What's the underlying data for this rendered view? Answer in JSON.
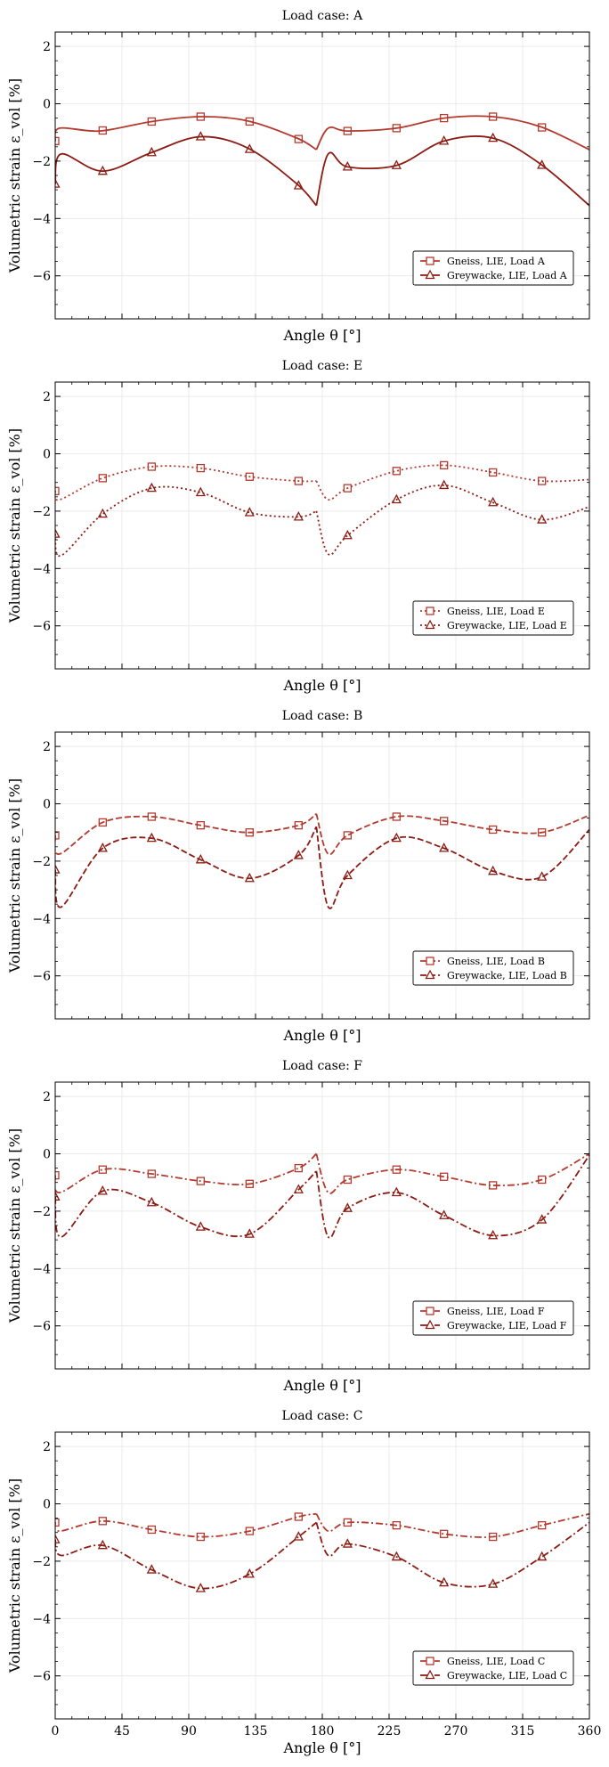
{
  "figure": {
    "x_ticks": [
      "0",
      "45",
      "90",
      "135",
      "180",
      "225",
      "270",
      "315",
      "360"
    ],
    "y_ticks": [
      "−6",
      "−4",
      "−2",
      "0",
      "2"
    ]
  },
  "colors": {
    "gneiss": "#b33a2e",
    "greywacke": "#8c1c13",
    "grid": "#e6e6e6"
  },
  "chart_data": [
    {
      "type": "line",
      "title": "Load case: A",
      "xlabel": "Angle θ [°]",
      "ylabel": "Volumetric strain ε_vol [%]",
      "xlim": [
        0,
        360
      ],
      "ylim": [
        -7.5,
        2.5
      ],
      "xticks": [
        0,
        45,
        90,
        135,
        180,
        225,
        270,
        315,
        360
      ],
      "yticks": [
        -6,
        -4,
        -2,
        0,
        2
      ],
      "grid": true,
      "legend_position": "lower-right",
      "series": [
        {
          "name": "Gneiss, LIE, Load A",
          "marker": "square",
          "linestyle": "solid",
          "x": [
            0,
            3,
            30,
            65,
            98,
            130,
            163,
            176,
            184,
            197,
            230,
            262,
            295,
            327,
            360
          ],
          "y": [
            -1.3,
            -0.85,
            -0.95,
            -0.62,
            -0.45,
            -0.6,
            -1.2,
            -1.6,
            -0.85,
            -0.95,
            -0.85,
            -0.5,
            -0.45,
            -0.8,
            -1.6
          ]
        },
        {
          "name": "Greywacke, LIE, Load A",
          "marker": "triangle",
          "linestyle": "solid",
          "x": [
            0,
            4,
            32,
            65,
            98,
            130,
            163,
            176,
            184,
            197,
            230,
            262,
            295,
            327,
            360
          ],
          "y": [
            -2.8,
            -1.75,
            -2.35,
            -1.7,
            -1.15,
            -1.55,
            -2.8,
            -3.55,
            -1.75,
            -2.2,
            -2.15,
            -1.3,
            -1.2,
            -2.1,
            -3.55
          ]
        }
      ],
      "markers": {
        "gneiss_x": [
          0,
          32,
          65,
          98,
          131,
          164,
          197,
          230,
          262,
          295,
          328
        ],
        "greywacke_x": [
          0,
          32,
          65,
          98,
          131,
          164,
          197,
          230,
          262,
          295,
          328
        ]
      }
    },
    {
      "type": "line",
      "title": "Load case: E",
      "xlabel": "Angle θ [°]",
      "ylabel": "Volumetric strain ε_vol [%]",
      "xlim": [
        0,
        360
      ],
      "ylim": [
        -7.5,
        2.5
      ],
      "xticks": [
        0,
        45,
        90,
        135,
        180,
        225,
        270,
        315,
        360
      ],
      "yticks": [
        -6,
        -4,
        -2,
        0,
        2
      ],
      "grid": true,
      "legend_position": "lower-right",
      "series": [
        {
          "name": "Gneiss, LIE, Load E",
          "marker": "square",
          "linestyle": "dotted",
          "x": [
            0,
            3,
            32,
            65,
            98,
            131,
            164,
            176,
            184,
            197,
            230,
            262,
            295,
            328,
            360
          ],
          "y": [
            -1.3,
            -1.6,
            -0.85,
            -0.45,
            -0.5,
            -0.8,
            -0.95,
            -0.95,
            -1.6,
            -1.2,
            -0.6,
            -0.4,
            -0.65,
            -0.95,
            -0.9
          ]
        },
        {
          "name": "Greywacke, LIE, Load E",
          "marker": "triangle",
          "linestyle": "dotted",
          "x": [
            0,
            4,
            32,
            65,
            98,
            131,
            164,
            176,
            184,
            197,
            230,
            262,
            295,
            328,
            360
          ],
          "y": [
            -2.8,
            -3.55,
            -2.1,
            -1.2,
            -1.35,
            -2.05,
            -2.2,
            -2.0,
            -3.5,
            -2.85,
            -1.6,
            -1.1,
            -1.7,
            -2.3,
            -1.85
          ]
        }
      ],
      "markers": {
        "gneiss_x": [
          0,
          32,
          65,
          98,
          131,
          164,
          197,
          230,
          262,
          295,
          328
        ],
        "greywacke_x": [
          0,
          32,
          65,
          98,
          131,
          164,
          197,
          230,
          262,
          295,
          328
        ]
      }
    },
    {
      "type": "line",
      "title": "Load case: B",
      "xlabel": "Angle θ [°]",
      "ylabel": "Volumetric strain ε_vol [%]",
      "xlim": [
        0,
        360
      ],
      "ylim": [
        -7.5,
        2.5
      ],
      "xticks": [
        0,
        45,
        90,
        135,
        180,
        225,
        270,
        315,
        360
      ],
      "yticks": [
        -6,
        -4,
        -2,
        0,
        2
      ],
      "grid": true,
      "legend_position": "lower-right",
      "series": [
        {
          "name": "Gneiss, LIE, Load B",
          "marker": "square",
          "linestyle": "dashed",
          "x": [
            0,
            3,
            32,
            65,
            98,
            131,
            164,
            176,
            184,
            197,
            230,
            262,
            295,
            328,
            360
          ],
          "y": [
            -1.1,
            -1.75,
            -0.65,
            -0.45,
            -0.75,
            -1.0,
            -0.75,
            -0.35,
            -1.75,
            -1.1,
            -0.45,
            -0.6,
            -0.9,
            -1.0,
            -0.4
          ]
        },
        {
          "name": "Greywacke, LIE, Load B",
          "marker": "triangle",
          "linestyle": "dashed",
          "x": [
            0,
            4,
            32,
            65,
            98,
            131,
            164,
            176,
            184,
            197,
            230,
            262,
            295,
            328,
            360
          ],
          "y": [
            -2.3,
            -3.6,
            -1.55,
            -1.2,
            -1.95,
            -2.6,
            -1.8,
            -0.8,
            -3.6,
            -2.5,
            -1.2,
            -1.55,
            -2.35,
            -2.55,
            -0.9
          ]
        }
      ],
      "markers": {
        "gneiss_x": [
          0,
          32,
          65,
          98,
          131,
          164,
          197,
          230,
          262,
          295,
          328
        ],
        "greywacke_x": [
          0,
          32,
          65,
          98,
          131,
          164,
          197,
          230,
          262,
          295,
          328
        ]
      }
    },
    {
      "type": "line",
      "title": "Load case: F",
      "xlabel": "Angle θ [°]",
      "ylabel": "Volumetric strain ε_vol [%]",
      "xlim": [
        0,
        360
      ],
      "ylim": [
        -7.5,
        2.5
      ],
      "xticks": [
        0,
        45,
        90,
        135,
        180,
        225,
        270,
        315,
        360
      ],
      "yticks": [
        -6,
        -4,
        -2,
        0,
        2
      ],
      "grid": true,
      "legend_position": "lower-right",
      "series": [
        {
          "name": "Gneiss, LIE, Load F",
          "marker": "square",
          "linestyle": "dashdot",
          "x": [
            0,
            3,
            32,
            65,
            98,
            131,
            164,
            176,
            184,
            197,
            230,
            262,
            295,
            328,
            360
          ],
          "y": [
            -0.75,
            -1.35,
            -0.55,
            -0.7,
            -0.95,
            -1.05,
            -0.5,
            0.0,
            -1.35,
            -0.9,
            -0.55,
            -0.8,
            -1.1,
            -0.9,
            0.0
          ]
        },
        {
          "name": "Greywacke, LIE, Load F",
          "marker": "triangle",
          "linestyle": "dashdot",
          "x": [
            0,
            4,
            32,
            65,
            98,
            131,
            164,
            176,
            184,
            197,
            230,
            262,
            295,
            328,
            360
          ],
          "y": [
            -1.5,
            -2.9,
            -1.3,
            -1.7,
            -2.55,
            -2.8,
            -1.25,
            -0.6,
            -2.9,
            -1.9,
            -1.35,
            -2.15,
            -2.85,
            -2.3,
            -0.05
          ]
        }
      ],
      "markers": {
        "gneiss_x": [
          0,
          32,
          65,
          98,
          131,
          164,
          197,
          230,
          262,
          295,
          328
        ],
        "greywacke_x": [
          0,
          32,
          65,
          98,
          131,
          164,
          197,
          230,
          262,
          295,
          328
        ]
      }
    },
    {
      "type": "line",
      "title": "Load case: C",
      "xlabel": "Angle θ [°]",
      "ylabel": "Volumetric strain ε_vol [%]",
      "xlim": [
        0,
        360
      ],
      "ylim": [
        -7.5,
        2.5
      ],
      "xticks": [
        0,
        45,
        90,
        135,
        180,
        225,
        270,
        315,
        360
      ],
      "yticks": [
        -6,
        -4,
        -2,
        0,
        2
      ],
      "grid": true,
      "legend_position": "lower-right",
      "series": [
        {
          "name": "Gneiss, LIE, Load C",
          "marker": "square",
          "linestyle": "dashdot",
          "x": [
            0,
            3,
            32,
            65,
            98,
            131,
            164,
            176,
            184,
            197,
            230,
            262,
            295,
            328,
            360
          ],
          "y": [
            -0.65,
            -0.95,
            -0.6,
            -0.9,
            -1.15,
            -0.95,
            -0.45,
            -0.35,
            -0.95,
            -0.65,
            -0.75,
            -1.05,
            -1.15,
            -0.75,
            -0.35
          ]
        },
        {
          "name": "Greywacke, LIE, Load C",
          "marker": "triangle",
          "linestyle": "dashdot",
          "x": [
            0,
            4,
            32,
            65,
            98,
            131,
            164,
            176,
            184,
            197,
            230,
            262,
            295,
            328,
            360
          ],
          "y": [
            -1.25,
            -1.8,
            -1.45,
            -2.3,
            -2.95,
            -2.45,
            -1.15,
            -0.65,
            -1.8,
            -1.4,
            -1.85,
            -2.75,
            -2.8,
            -1.85,
            -0.65
          ]
        }
      ],
      "markers": {
        "gneiss_x": [
          0,
          32,
          65,
          98,
          131,
          164,
          197,
          230,
          262,
          295,
          328
        ],
        "greywacke_x": [
          0,
          32,
          65,
          98,
          131,
          164,
          197,
          230,
          262,
          295,
          328
        ]
      }
    }
  ]
}
